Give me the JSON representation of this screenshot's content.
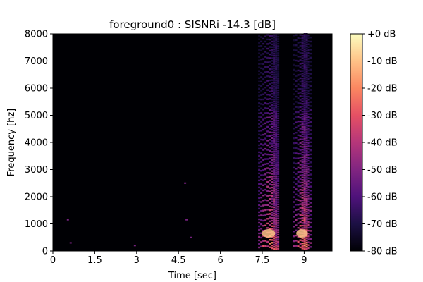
{
  "chart_data": {
    "type": "heatmap",
    "title": "foreground0 : SISNRi -14.3 [dB]",
    "xlabel": "Time [sec]",
    "ylabel": "Frequency [hz]",
    "xlim": [
      0,
      10
    ],
    "ylim": [
      0,
      8000
    ],
    "x_ticks": [
      0,
      1.5,
      3,
      4.5,
      6,
      7.5,
      9
    ],
    "x_tick_labels": [
      "0",
      "1.5",
      "3",
      "4.5",
      "6",
      "7.5",
      "9"
    ],
    "y_ticks": [
      0,
      1000,
      2000,
      3000,
      4000,
      5000,
      6000,
      7000,
      8000
    ],
    "y_tick_labels": [
      "0",
      "1000",
      "2000",
      "3000",
      "4000",
      "5000",
      "6000",
      "7000",
      "8000"
    ],
    "colorbar": {
      "colormap": "magma",
      "range_db": [
        -80,
        0
      ],
      "ticks": [
        0,
        -10,
        -20,
        -30,
        -40,
        -50,
        -60,
        -70,
        -80
      ],
      "tick_labels": [
        "+0 dB",
        "-10 dB",
        "-20 dB",
        "-30 dB",
        "-40 dB",
        "-50 dB",
        "-60 dB",
        "-70 dB",
        "-80 dB"
      ]
    },
    "speech_segments_sec": [
      [
        7.35,
        8.1
      ],
      [
        8.6,
        9.25
      ]
    ],
    "background_level_db": -80,
    "grid": false,
    "colors": {
      "background": "#000004",
      "magma_stops": [
        "#000004",
        "#1c1044",
        "#4f127b",
        "#812581",
        "#b5367a",
        "#e55064",
        "#fb8761",
        "#fec287",
        "#fcfdbf"
      ]
    }
  }
}
